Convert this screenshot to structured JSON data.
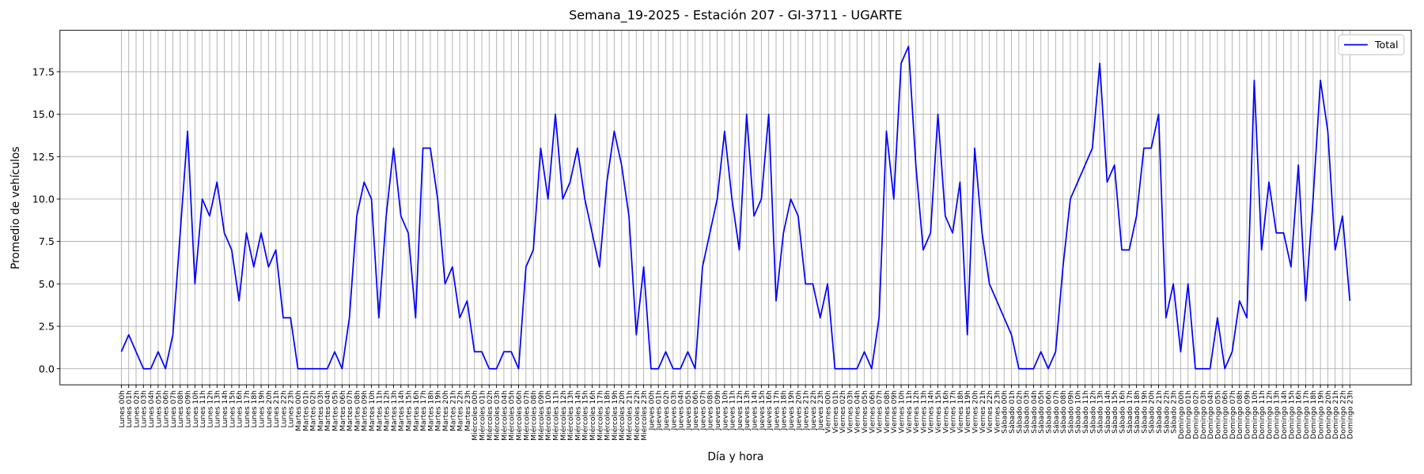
{
  "chart_data": {
    "type": "line",
    "title": "Semana_19-2025 - Estación 207 - GI-3711  - UGARTE",
    "xlabel": "Día y hora",
    "ylabel": "Promedio de vehículos",
    "categories": [
      "Lunes 00h",
      "Lunes 01h",
      "Lunes 02h",
      "Lunes 03h",
      "Lunes 04h",
      "Lunes 05h",
      "Lunes 06h",
      "Lunes 07h",
      "Lunes 08h",
      "Lunes 09h",
      "Lunes 10h",
      "Lunes 11h",
      "Lunes 12h",
      "Lunes 13h",
      "Lunes 14h",
      "Lunes 15h",
      "Lunes 16h",
      "Lunes 17h",
      "Lunes 18h",
      "Lunes 19h",
      "Lunes 20h",
      "Lunes 21h",
      "Lunes 22h",
      "Lunes 23h",
      "Martes 00h",
      "Martes 01h",
      "Martes 02h",
      "Martes 03h",
      "Martes 04h",
      "Martes 05h",
      "Martes 06h",
      "Martes 07h",
      "Martes 08h",
      "Martes 09h",
      "Martes 10h",
      "Martes 11h",
      "Martes 12h",
      "Martes 13h",
      "Martes 14h",
      "Martes 15h",
      "Martes 16h",
      "Martes 17h",
      "Martes 18h",
      "Martes 19h",
      "Martes 20h",
      "Martes 21h",
      "Martes 22h",
      "Martes 23h",
      "Miércoles 00h",
      "Miércoles 01h",
      "Miércoles 02h",
      "Miércoles 03h",
      "Miércoles 04h",
      "Miércoles 05h",
      "Miércoles 06h",
      "Miércoles 07h",
      "Miércoles 08h",
      "Miércoles 09h",
      "Miércoles 10h",
      "Miércoles 11h",
      "Miércoles 12h",
      "Miércoles 13h",
      "Miércoles 14h",
      "Miércoles 15h",
      "Miércoles 16h",
      "Miércoles 17h",
      "Miércoles 18h",
      "Miércoles 19h",
      "Miércoles 20h",
      "Miércoles 21h",
      "Miércoles 22h",
      "Miércoles 23h",
      "Jueves 00h",
      "Jueves 01h",
      "Jueves 02h",
      "Jueves 03h",
      "Jueves 04h",
      "Jueves 05h",
      "Jueves 06h",
      "Jueves 07h",
      "Jueves 08h",
      "Jueves 09h",
      "Jueves 10h",
      "Jueves 11h",
      "Jueves 12h",
      "Jueves 13h",
      "Jueves 14h",
      "Jueves 15h",
      "Jueves 16h",
      "Jueves 17h",
      "Jueves 18h",
      "Jueves 19h",
      "Jueves 20h",
      "Jueves 21h",
      "Jueves 22h",
      "Jueves 23h",
      "Viernes 00h",
      "Viernes 01h",
      "Viernes 02h",
      "Viernes 03h",
      "Viernes 04h",
      "Viernes 05h",
      "Viernes 06h",
      "Viernes 07h",
      "Viernes 08h",
      "Viernes 09h",
      "Viernes 10h",
      "Viernes 11h",
      "Viernes 12h",
      "Viernes 13h",
      "Viernes 14h",
      "Viernes 15h",
      "Viernes 16h",
      "Viernes 17h",
      "Viernes 18h",
      "Viernes 19h",
      "Viernes 20h",
      "Viernes 21h",
      "Viernes 22h",
      "Viernes 23h",
      "Sábado 00h",
      "Sábado 01h",
      "Sábado 02h",
      "Sábado 03h",
      "Sábado 04h",
      "Sábado 05h",
      "Sábado 06h",
      "Sábado 07h",
      "Sábado 08h",
      "Sábado 09h",
      "Sábado 10h",
      "Sábado 11h",
      "Sábado 12h",
      "Sábado 13h",
      "Sábado 14h",
      "Sábado 15h",
      "Sábado 16h",
      "Sábado 17h",
      "Sábado 18h",
      "Sábado 19h",
      "Sábado 20h",
      "Sábado 21h",
      "Sábado 22h",
      "Sábado 23h",
      "Domingo 00h",
      "Domingo 01h",
      "Domingo 02h",
      "Domingo 03h",
      "Domingo 04h",
      "Domingo 05h",
      "Domingo 06h",
      "Domingo 07h",
      "Domingo 08h",
      "Domingo 09h",
      "Domingo 10h",
      "Domingo 11h",
      "Domingo 12h",
      "Domingo 13h",
      "Domingo 14h",
      "Domingo 15h",
      "Domingo 16h",
      "Domingo 17h",
      "Domingo 18h",
      "Domingo 19h",
      "Domingo 20h",
      "Domingo 21h",
      "Domingo 22h",
      "Domingo 23h"
    ],
    "series": [
      {
        "name": "Total",
        "color": "#0000ff",
        "values": [
          1,
          2,
          1,
          0,
          0,
          1,
          0,
          2,
          8,
          14,
          5,
          10,
          9,
          11,
          8,
          7,
          4,
          8,
          6,
          8,
          6,
          7,
          3,
          3,
          0,
          0,
          0,
          0,
          0,
          1,
          0,
          3,
          9,
          11,
          10,
          3,
          9,
          13,
          9,
          8,
          3,
          13,
          13,
          10,
          5,
          6,
          3,
          4,
          1,
          1,
          0,
          0,
          1,
          1,
          0,
          6,
          7,
          13,
          10,
          15,
          10,
          11,
          13,
          10,
          8,
          6,
          11,
          14,
          12,
          9,
          2,
          6,
          0,
          0,
          1,
          0,
          0,
          1,
          0,
          6,
          8,
          10,
          14,
          10,
          7,
          15,
          9,
          10,
          15,
          4,
          8,
          10,
          9,
          5,
          5,
          3,
          5,
          0,
          0,
          0,
          0,
          1,
          0,
          3,
          14,
          10,
          18,
          19,
          12,
          7,
          8,
          15,
          9,
          8,
          11,
          2,
          13,
          8,
          5,
          4,
          3,
          2,
          0,
          0,
          0,
          1,
          0,
          1,
          6,
          10,
          11,
          12,
          13,
          18,
          11,
          12,
          7,
          7,
          9,
          13,
          13,
          15,
          3,
          5,
          1,
          5,
          0,
          0,
          0,
          3,
          0,
          1,
          4,
          3,
          17,
          7,
          11,
          8,
          8,
          6,
          12,
          4,
          10,
          17,
          14,
          7,
          9,
          4
        ]
      }
    ],
    "ylim": [
      -0.95,
      19.95
    ],
    "yticks": [
      {
        "value": 0,
        "label": "0.0"
      },
      2.5,
      {
        "value": 5,
        "label": "5.0"
      },
      7.5,
      {
        "value": 10,
        "label": "10.0"
      },
      12.5,
      {
        "value": 15,
        "label": "15.0"
      },
      17.5
    ],
    "grid": true,
    "legend": "upper right"
  }
}
